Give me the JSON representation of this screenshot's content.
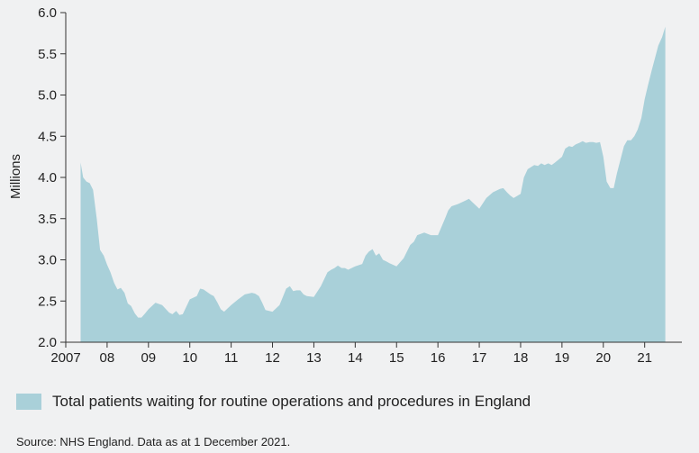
{
  "colors": {
    "fill": "#a9d0d9",
    "axis": "#333333",
    "background": "#f0f1f2"
  },
  "chart_data": {
    "type": "area",
    "ylabel": "Millions",
    "xlabel": "",
    "title": "",
    "ylim": [
      2.0,
      6.0
    ],
    "xlim": [
      2007.0,
      2021.9
    ],
    "grid": false,
    "legend_position": "bottom-left",
    "y_ticks": [
      {
        "value": 2.0,
        "label": "2.0"
      },
      {
        "value": 2.5,
        "label": "2.5"
      },
      {
        "value": 3.0,
        "label": "3.0"
      },
      {
        "value": 3.5,
        "label": "3.5"
      },
      {
        "value": 4.0,
        "label": "4.0"
      },
      {
        "value": 4.5,
        "label": "4.5"
      },
      {
        "value": 5.0,
        "label": "5.0"
      },
      {
        "value": 5.5,
        "label": "5.5"
      },
      {
        "value": 6.0,
        "label": "6.0"
      }
    ],
    "x_ticks": [
      {
        "value": 2007,
        "label": "2007"
      },
      {
        "value": 2008,
        "label": "08"
      },
      {
        "value": 2009,
        "label": "09"
      },
      {
        "value": 2010,
        "label": "10"
      },
      {
        "value": 2011,
        "label": "11"
      },
      {
        "value": 2012,
        "label": "12"
      },
      {
        "value": 2013,
        "label": "13"
      },
      {
        "value": 2014,
        "label": "14"
      },
      {
        "value": 2015,
        "label": "15"
      },
      {
        "value": 2016,
        "label": "16"
      },
      {
        "value": 2017,
        "label": "17"
      },
      {
        "value": 2018,
        "label": "18"
      },
      {
        "value": 2019,
        "label": "19"
      },
      {
        "value": 2020,
        "label": "20"
      },
      {
        "value": 2021,
        "label": "21"
      }
    ],
    "series": [
      {
        "name": "Total patients waiting for routine operations and procedures in England",
        "x": [
          2007.36,
          2007.42,
          2007.5,
          2007.58,
          2007.66,
          2007.75,
          2007.83,
          2007.92,
          2008.0,
          2008.08,
          2008.17,
          2008.25,
          2008.33,
          2008.42,
          2008.5,
          2008.58,
          2008.67,
          2008.75,
          2008.83,
          2008.92,
          2009.0,
          2009.17,
          2009.33,
          2009.5,
          2009.58,
          2009.67,
          2009.75,
          2009.83,
          2010.0,
          2010.17,
          2010.25,
          2010.33,
          2010.5,
          2010.58,
          2010.67,
          2010.75,
          2010.83,
          2011.0,
          2011.17,
          2011.33,
          2011.5,
          2011.58,
          2011.67,
          2011.75,
          2011.83,
          2012.0,
          2012.17,
          2012.25,
          2012.33,
          2012.42,
          2012.5,
          2012.58,
          2012.67,
          2012.75,
          2012.83,
          2013.0,
          2013.17,
          2013.33,
          2013.42,
          2013.5,
          2013.58,
          2013.67,
          2013.75,
          2013.83,
          2014.0,
          2014.17,
          2014.25,
          2014.33,
          2014.42,
          2014.5,
          2014.58,
          2014.67,
          2014.75,
          2014.83,
          2015.0,
          2015.17,
          2015.33,
          2015.42,
          2015.5,
          2015.67,
          2015.83,
          2016.0,
          2016.17,
          2016.25,
          2016.33,
          2016.5,
          2016.67,
          2016.75,
          2016.83,
          2017.0,
          2017.17,
          2017.33,
          2017.5,
          2017.58,
          2017.67,
          2017.75,
          2017.83,
          2018.0,
          2018.08,
          2018.17,
          2018.33,
          2018.42,
          2018.5,
          2018.58,
          2018.67,
          2018.75,
          2018.83,
          2019.0,
          2019.08,
          2019.17,
          2019.25,
          2019.33,
          2019.42,
          2019.5,
          2019.58,
          2019.67,
          2019.75,
          2019.83,
          2019.92,
          2020.0,
          2020.08,
          2020.17,
          2020.25,
          2020.33,
          2020.5,
          2020.58,
          2020.67,
          2020.75,
          2020.83,
          2020.92,
          2021.0,
          2021.08,
          2021.17,
          2021.25,
          2021.33,
          2021.42,
          2021.5
        ],
        "values": [
          4.18,
          4.0,
          3.95,
          3.93,
          3.85,
          3.5,
          3.12,
          3.05,
          2.94,
          2.85,
          2.72,
          2.64,
          2.66,
          2.6,
          2.47,
          2.44,
          2.35,
          2.3,
          2.3,
          2.35,
          2.4,
          2.48,
          2.45,
          2.36,
          2.34,
          2.38,
          2.33,
          2.34,
          2.52,
          2.56,
          2.65,
          2.64,
          2.58,
          2.56,
          2.48,
          2.4,
          2.37,
          2.45,
          2.52,
          2.58,
          2.6,
          2.59,
          2.56,
          2.48,
          2.39,
          2.37,
          2.45,
          2.55,
          2.65,
          2.68,
          2.62,
          2.63,
          2.63,
          2.58,
          2.56,
          2.55,
          2.68,
          2.85,
          2.88,
          2.9,
          2.93,
          2.9,
          2.9,
          2.88,
          2.92,
          2.95,
          3.05,
          3.1,
          3.13,
          3.05,
          3.08,
          3.0,
          2.98,
          2.96,
          2.92,
          3.02,
          3.18,
          3.22,
          3.3,
          3.33,
          3.3,
          3.3,
          3.5,
          3.6,
          3.65,
          3.68,
          3.72,
          3.74,
          3.7,
          3.62,
          3.75,
          3.82,
          3.86,
          3.87,
          3.82,
          3.78,
          3.75,
          3.8,
          4.0,
          4.1,
          4.15,
          4.14,
          4.17,
          4.15,
          4.17,
          4.15,
          4.18,
          4.25,
          4.35,
          4.38,
          4.37,
          4.4,
          4.42,
          4.44,
          4.42,
          4.43,
          4.43,
          4.42,
          4.43,
          4.25,
          3.95,
          3.87,
          3.87,
          4.05,
          4.38,
          4.45,
          4.45,
          4.5,
          4.58,
          4.72,
          4.95,
          5.12,
          5.3,
          5.45,
          5.6,
          5.7,
          5.83
        ]
      }
    ]
  },
  "legend": {
    "label": "Total patients waiting for routine operations and procedures in England"
  },
  "source": "Source: NHS England. Data as at 1 December 2021."
}
